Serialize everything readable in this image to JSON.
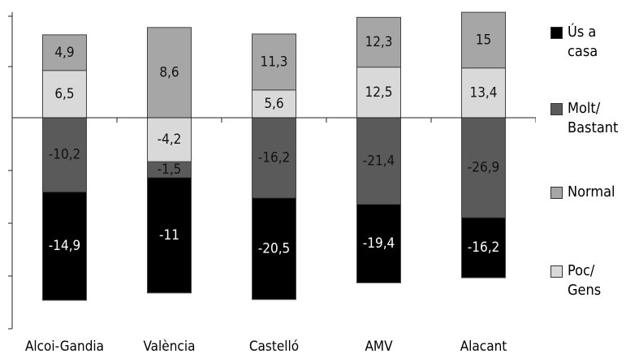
{
  "chart_data": {
    "type": "diverging-stacked-bar",
    "categories": [
      "Alcoi-Gandia",
      "València",
      "Castelló",
      "AMV",
      "Alacant"
    ],
    "series": [
      {
        "name": "Ús a casa",
        "color": "#000000",
        "values": [
          -14.9,
          -11,
          -20.5,
          -19.4,
          -16.2
        ],
        "value_labels": [
          "-14,9",
          "-11",
          "-20,5",
          "-19,4",
          "-16,2"
        ]
      },
      {
        "name": "Molt/ Bastant",
        "color": "#5a5a5a",
        "values": [
          -10.2,
          -1.5,
          -16.2,
          -21.4,
          -26.9
        ],
        "value_labels": [
          "-10,2",
          "-1,5",
          "-16,2",
          "-21,4",
          "-26,9"
        ]
      },
      {
        "name": "Normal",
        "color": "#a6a6a6",
        "values": [
          4.9,
          8.6,
          11.3,
          12.3,
          15
        ],
        "value_labels": [
          "4,9",
          "8,6",
          "11,3",
          "12,3",
          "15"
        ]
      },
      {
        "name": "Poc/ Gens",
        "color": "#d9d9d9",
        "values": [
          6.5,
          -4.2,
          5.6,
          12.5,
          13.4
        ],
        "value_labels": [
          "6,5",
          "-4,2",
          "5,6",
          "12,5",
          "13,4"
        ]
      }
    ],
    "legend": "right"
  }
}
